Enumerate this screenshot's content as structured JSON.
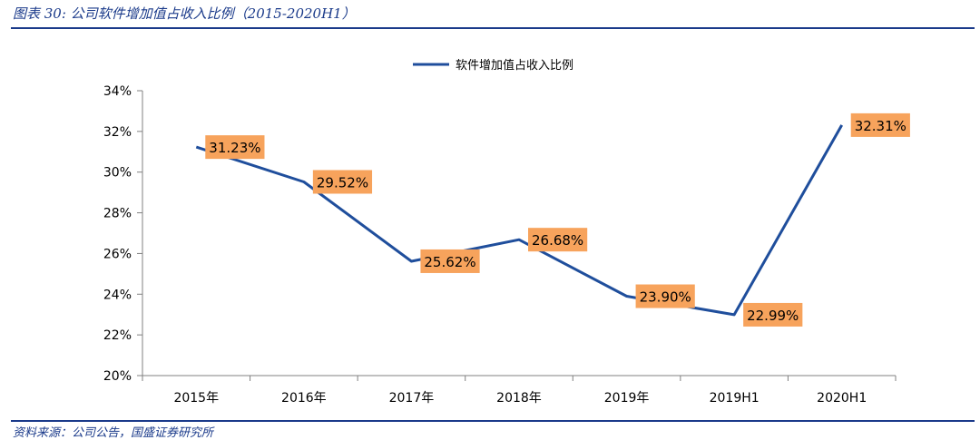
{
  "figure": {
    "title": "图表 30:  公司软件增加值占收入比例（2015-2020H1）",
    "source": "资料来源：公司公告，国盛证券研究所"
  },
  "colors": {
    "line": "#1f4e9c",
    "label_fill": "#f7a35c",
    "rule": "#1a3a8a"
  },
  "chart_data": {
    "type": "line",
    "categories": [
      "2015年",
      "2016年",
      "2017年",
      "2018年",
      "2019年",
      "2019H1",
      "2020H1"
    ],
    "series": [
      {
        "name": "软件增加值占收入比例",
        "values": [
          31.23,
          29.52,
          25.62,
          26.68,
          23.9,
          22.99,
          32.31
        ],
        "labels": [
          "31.23%",
          "29.52%",
          "25.62%",
          "26.68%",
          "23.90%",
          "22.99%",
          "32.31%"
        ]
      }
    ],
    "ylim": [
      20,
      34
    ],
    "yticks": [
      20,
      22,
      24,
      26,
      28,
      30,
      32,
      34
    ],
    "ytick_labels": [
      "20%",
      "22%",
      "24%",
      "26%",
      "28%",
      "30%",
      "32%",
      "34%"
    ],
    "legend_position": "top-center",
    "grid": false
  }
}
